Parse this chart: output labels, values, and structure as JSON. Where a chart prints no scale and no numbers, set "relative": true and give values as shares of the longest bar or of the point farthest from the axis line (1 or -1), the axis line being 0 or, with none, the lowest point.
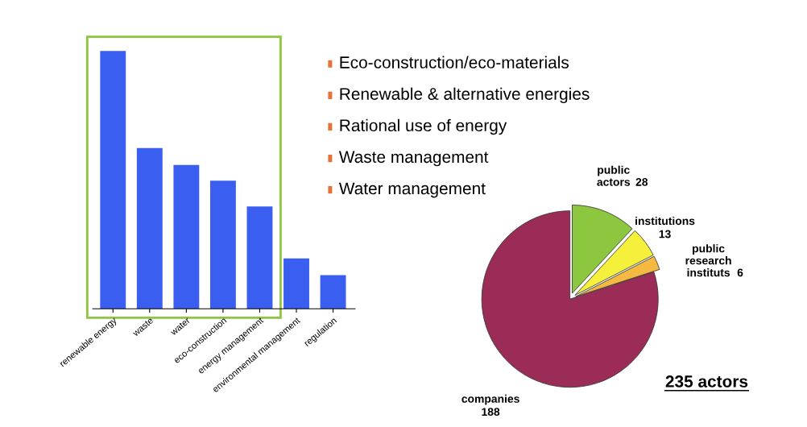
{
  "chart_data": [
    {
      "type": "bar",
      "relative": true,
      "categories": [
        "renewable energy",
        "waste",
        "water",
        "eco-construction",
        "energy management",
        "environmental management",
        "regulation"
      ],
      "values": [
        1,
        0.623,
        0.558,
        0.497,
        0.397,
        0.195,
        0.13
      ],
      "color": "#3a5ff0"
    },
    {
      "type": "other",
      "annotations": [
        "Eco-construction/eco-materials",
        "Renewable & alternative energies",
        "Rational use of energy",
        "Waste management",
        "Water management"
      ]
    },
    {
      "type": "pie",
      "categories": [
        "public\nactors",
        "institutions",
        "public\nresearch\ninstituts",
        "companies"
      ],
      "values": [
        28,
        13,
        6,
        188
      ],
      "colors": [
        "#8dc63f",
        "#f5f03c",
        "#f5b942",
        "#9b2c58"
      ],
      "data_labels": true,
      "annotations": [
        "235 actors"
      ]
    }
  ]
}
